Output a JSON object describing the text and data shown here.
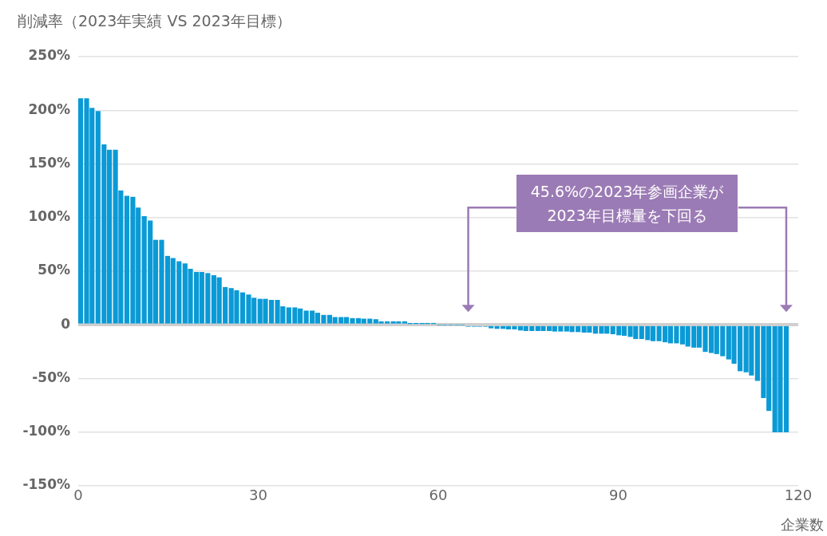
{
  "chart_data": {
    "type": "bar",
    "ylabel": "削減率（2023年実績 VS 2023年目標）",
    "xlabel": "企業数",
    "x": [
      0.4,
      1.4,
      2.3,
      3.3,
      4.3,
      5.2,
      6.2,
      7.1,
      8.1,
      9.1,
      10.0,
      11.0,
      12.0,
      12.9,
      13.9,
      14.9,
      15.8,
      16.8,
      17.8,
      18.7,
      19.7,
      20.6,
      21.6,
      22.6,
      23.5,
      24.5,
      25.5,
      26.4,
      27.4,
      28.4,
      29.3,
      30.3,
      31.2,
      32.2,
      33.2,
      34.1,
      35.1,
      36.1,
      37.0,
      38.0,
      39.0,
      39.9,
      40.9,
      41.9,
      42.8,
      43.8,
      44.7,
      45.7,
      46.7,
      47.6,
      48.6,
      49.6,
      50.5,
      51.5,
      52.5,
      53.4,
      54.4,
      55.3,
      56.3,
      57.3,
      58.2,
      59.2,
      60.2,
      61.1,
      62.1,
      63.1,
      64.0,
      65.0,
      66.0,
      66.9,
      67.9,
      68.8,
      69.8,
      70.8,
      71.7,
      72.7,
      73.7,
      74.6,
      75.6,
      76.6,
      77.5,
      78.5,
      79.4,
      80.4,
      81.4,
      82.3,
      83.3,
      84.3,
      85.2,
      86.2,
      87.2,
      88.1,
      89.1,
      90.1,
      91.0,
      92.0,
      92.9,
      93.9,
      94.9,
      95.8,
      96.8,
      97.8,
      98.7,
      99.7,
      100.7,
      101.6,
      102.6,
      103.5,
      104.5,
      105.5,
      106.4,
      107.4,
      108.4,
      109.3,
      110.3,
      111.3,
      112.2,
      113.2,
      114.2,
      115.1,
      116.1,
      117.0,
      118.0
    ],
    "values": [
      211,
      211,
      202,
      199,
      168,
      163,
      163,
      125,
      120,
      119,
      109,
      101,
      97,
      79,
      79,
      64,
      62,
      59,
      57,
      52,
      49,
      49,
      48,
      46,
      44,
      35,
      34,
      32,
      30,
      28,
      25,
      24,
      24,
      23,
      23,
      17,
      16,
      16,
      15,
      13,
      13,
      11,
      9,
      9,
      7,
      7,
      7,
      6,
      6,
      5.5,
      5.5,
      5,
      3,
      3,
      3,
      3,
      3,
      1,
      1,
      1,
      1,
      1,
      0,
      0,
      0,
      0,
      0,
      -1.5,
      -1.5,
      -1.5,
      -1.5,
      -3,
      -3.5,
      -3.5,
      -4,
      -4,
      -5,
      -5.5,
      -5.5,
      -5.5,
      -5.5,
      -5.5,
      -6,
      -6,
      -6,
      -6.5,
      -6.5,
      -7,
      -7,
      -8,
      -8,
      -8,
      -8.5,
      -9.5,
      -10,
      -11,
      -13,
      -13,
      -14,
      -15,
      -15,
      -16,
      -17,
      -17,
      -18,
      -20,
      -21,
      -21,
      -25,
      -26,
      -27,
      -29,
      -32,
      -36,
      -43,
      -44,
      -47,
      -52,
      -68,
      -80,
      -100,
      -100,
      -100
    ],
    "color": "#0a9ad6",
    "xlim": [
      0,
      120
    ],
    "xticks": [
      0,
      30,
      60,
      90,
      120
    ],
    "ylim": [
      -150,
      250
    ],
    "yticks": [
      {
        "value": -150,
        "label": "-150%"
      },
      {
        "value": -100,
        "label": "-100%"
      },
      {
        "value": -50,
        "label": "-50%"
      },
      0,
      {
        "value": 50,
        "label": "50%"
      },
      {
        "value": 100,
        "label": "100%"
      },
      {
        "value": 150,
        "label": "150%"
      },
      {
        "value": 200,
        "label": "200%"
      },
      {
        "value": 250,
        "label": "250%"
      }
    ],
    "grid": "y",
    "annotations": [
      "45.6%の2023年参画企業が\n2023年目標量を下回る"
    ]
  }
}
